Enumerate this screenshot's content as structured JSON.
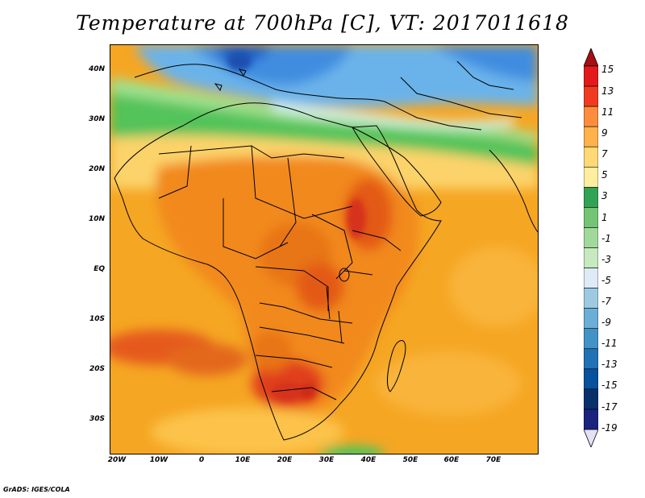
{
  "title": "Temperature at 700hPa [C], VT: 2017011618",
  "footer": "GrADS: IGES/COLA",
  "map": {
    "lon_range": [
      -25,
      80
    ],
    "lat_range": [
      -37,
      45
    ],
    "lat_ticks": [
      "40N",
      "30N",
      "20N",
      "10N",
      "EQ",
      "10S",
      "20S",
      "30S"
    ],
    "lon_ticks": [
      "20W",
      "10W",
      "0",
      "10E",
      "20E",
      "30E",
      "40E",
      "50E",
      "60E",
      "70E"
    ]
  },
  "colorbar": {
    "labels": [
      "15",
      "13",
      "11",
      "9",
      "7",
      "5",
      "3",
      "1",
      "-1",
      "-3",
      "-5",
      "-7",
      "-9",
      "-11",
      "-13",
      "-15",
      "-17",
      "-19"
    ],
    "colors": [
      "#a50f15",
      "#e31a1c",
      "#f03b20",
      "#fd8d3c",
      "#feb24c",
      "#fed976",
      "#ffeda0",
      "#31a354",
      "#74c476",
      "#a1d99b",
      "#c7e9c0",
      "#deebf7",
      "#9ecae1",
      "#6baed6",
      "#4292c6",
      "#2171b5",
      "#08519c",
      "#08306b",
      "#1a237e",
      "#e6e0f5"
    ]
  }
}
